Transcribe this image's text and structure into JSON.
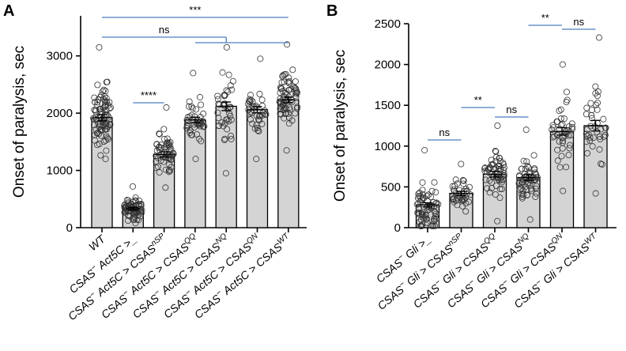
{
  "chart_data": [
    {
      "panel": "A",
      "type": "bar",
      "ylabel": "Onset of paralysis, sec",
      "ylim": [
        0,
        3700
      ],
      "yticks": [
        0,
        1000,
        2000,
        3000
      ],
      "grid": false,
      "categories": [
        {
          "prefix": "WT",
          "sup": ""
        },
        {
          "prefix": "CSAS",
          "sup1": "−",
          "mid": " Act5C >_",
          "sup": ""
        },
        {
          "prefix": "CSAS",
          "sup1": "−",
          "mid": " Act5C > CSAS",
          "sup": "nSP"
        },
        {
          "prefix": "CSAS",
          "sup1": "−",
          "mid": " Act5C > CSAS",
          "sup": "QQ"
        },
        {
          "prefix": "CSAS",
          "sup1": "−",
          "mid": " Act5C > CSAS",
          "sup": "NQ"
        },
        {
          "prefix": "CSAS",
          "sup1": "−",
          "mid": " Act5C > CSAS",
          "sup": "QN"
        },
        {
          "prefix": "CSAS",
          "sup1": "−",
          "mid": " Act5C > CSAS",
          "sup": "WT"
        }
      ],
      "values": [
        1920,
        330,
        1280,
        1880,
        2120,
        2060,
        2230
      ],
      "sem": [
        55,
        25,
        45,
        50,
        75,
        55,
        50
      ],
      "n": [
        90,
        75,
        60,
        45,
        40,
        40,
        70
      ],
      "range": [
        [
          1200,
          3150
        ],
        [
          80,
          720
        ],
        [
          700,
          2100
        ],
        [
          1200,
          2700
        ],
        [
          950,
          3150
        ],
        [
          1200,
          2950
        ],
        [
          1350,
          3200
        ]
      ],
      "significance": [
        {
          "label": "***",
          "from": 0,
          "to": 6
        },
        {
          "label": "ns",
          "from": 0,
          "to": 4,
          "tail": 6
        },
        {
          "label": "****",
          "from": 1,
          "to": 2
        }
      ]
    },
    {
      "panel": "B",
      "type": "bar",
      "ylabel": "Onset of paralysis, sec",
      "ylim": [
        0,
        2500
      ],
      "yticks": [
        0,
        500,
        1000,
        1500,
        2000,
        2500
      ],
      "grid": false,
      "categories": [
        {
          "prefix": "CSAS",
          "sup1": "−",
          "mid": " Gli >_",
          "sup": ""
        },
        {
          "prefix": "CSAS",
          "sup1": "−",
          "mid": " Gli > CSAS",
          "sup": "nSP"
        },
        {
          "prefix": "CSAS",
          "sup1": "−",
          "mid": " Gli > CSAS",
          "sup": "QQ"
        },
        {
          "prefix": "CSAS",
          "sup1": "−",
          "mid": " Gli > CSAS",
          "sup": "NQ"
        },
        {
          "prefix": "CSAS",
          "sup1": "−",
          "mid": " Gli > CSAS",
          "sup": "QN"
        },
        {
          "prefix": "CSAS",
          "sup1": "−",
          "mid": " Gli > CSAS",
          "sup": "WT"
        }
      ],
      "values": [
        280,
        420,
        655,
        615,
        1180,
        1250
      ],
      "sem": [
        25,
        25,
        35,
        35,
        45,
        65
      ],
      "n": [
        70,
        40,
        60,
        60,
        45,
        40
      ],
      "range": [
        [
          20,
          950
        ],
        [
          200,
          780
        ],
        [
          80,
          1250
        ],
        [
          100,
          1200
        ],
        [
          450,
          2000
        ],
        [
          420,
          2330
        ]
      ],
      "significance": [
        {
          "label": "ns",
          "from": 0,
          "to": 1
        },
        {
          "label": "**",
          "from": 1,
          "to": 2
        },
        {
          "label": "ns",
          "from": 2,
          "to": 3
        },
        {
          "label": "**",
          "from": 3,
          "to": 4
        },
        {
          "label": "ns",
          "from": 4,
          "to": 5
        }
      ]
    }
  ]
}
